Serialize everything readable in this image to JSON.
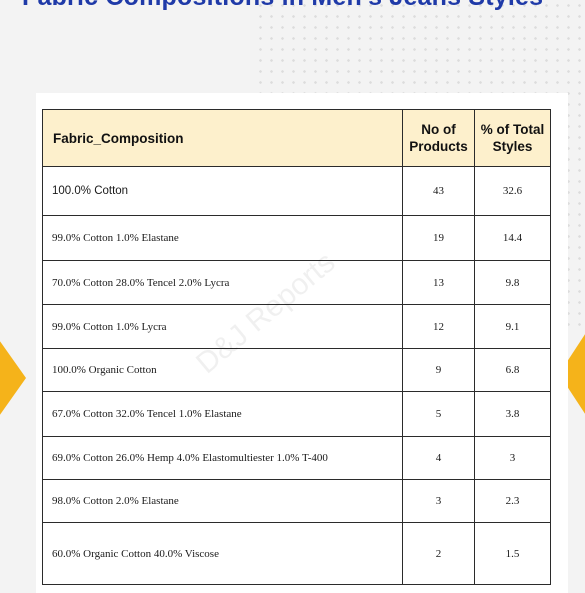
{
  "title": "Fabric Compositions in Men's Jeans Styles",
  "watermark": "D&J Reports",
  "colors": {
    "title": "#1f3aa8",
    "header_bg": "#fdf0cc",
    "accent": "#f5b31a"
  },
  "table": {
    "headers": [
      "Fabric_Composition",
      "No of Products",
      "% of Total Styles"
    ],
    "rows": [
      [
        "100.0% Cotton",
        "43",
        "32.6"
      ],
      [
        "99.0% Cotton 1.0% Elastane",
        "19",
        "14.4"
      ],
      [
        "70.0% Cotton 28.0% Tencel 2.0% Lycra",
        "13",
        "9.8"
      ],
      [
        "99.0% Cotton 1.0% Lycra",
        "12",
        "9.1"
      ],
      [
        "100.0% Organic Cotton",
        "9",
        "6.8"
      ],
      [
        "67.0% Cotton 32.0% Tencel 1.0% Elastane",
        "5",
        "3.8"
      ],
      [
        "69.0% Cotton 26.0% Hemp 4.0% Elastomultiester 1.0% T-400",
        "4",
        "3"
      ],
      [
        "98.0% Cotton 2.0% Elastane",
        "3",
        "2.3"
      ],
      [
        "60.0% Organic Cotton 40.0% Viscose",
        "2",
        "1.5"
      ]
    ]
  }
}
